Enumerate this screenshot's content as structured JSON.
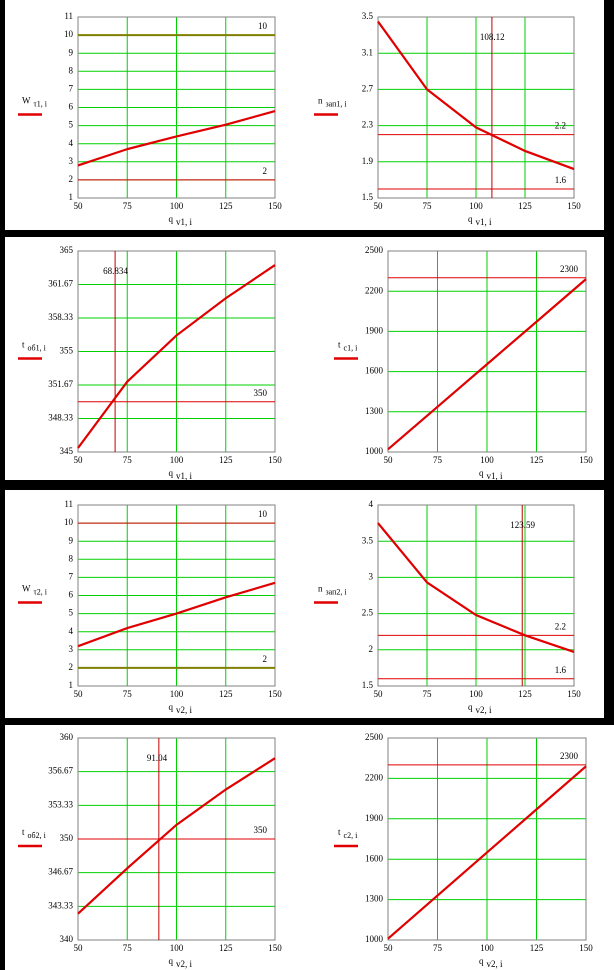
{
  "chart_data": [
    {
      "type": "line",
      "xlabel": {
        "text": "q",
        "sub": "v1, i"
      },
      "ylabel": {
        "text": "W",
        "sub": "τ1, i"
      },
      "x": [
        50,
        75,
        100,
        125,
        150
      ],
      "xlim": [
        50,
        150
      ],
      "xticks": [
        50,
        75,
        100,
        125,
        150
      ],
      "ylim": [
        1,
        11
      ],
      "yticks": [
        1,
        2,
        3,
        4,
        5,
        6,
        7,
        8,
        9,
        10,
        11
      ],
      "grid": true,
      "series": [
        {
          "color": "#e00000",
          "values": [
            2.8,
            3.7,
            4.4,
            5.05,
            5.8
          ]
        }
      ],
      "hlines": [
        {
          "value": 10,
          "color": "#808000"
        },
        {
          "value": 2,
          "color": "#e00000"
        }
      ],
      "vlines": []
    },
    {
      "type": "line",
      "xlabel": {
        "text": "q",
        "sub": "v1, i"
      },
      "ylabel": {
        "text": "n",
        "sub": "зап1, i"
      },
      "x": [
        50,
        75,
        100,
        125,
        150
      ],
      "xlim": [
        50,
        150
      ],
      "xticks": [
        50,
        75,
        100,
        125,
        150
      ],
      "ylim": [
        1.5,
        3.5
      ],
      "yticks": [
        1.5,
        1.9,
        2.3,
        2.7,
        3.1,
        3.5
      ],
      "grid": true,
      "series": [
        {
          "color": "#e00000",
          "values": [
            3.45,
            2.7,
            2.28,
            2.02,
            1.82
          ]
        }
      ],
      "hlines": [
        {
          "value": 2.2,
          "color": "#e00000"
        },
        {
          "value": 1.6,
          "color": "#e00000"
        }
      ],
      "vlines": [
        {
          "value": 108.12,
          "color": "#c00000"
        }
      ]
    },
    {
      "type": "line",
      "xlabel": {
        "text": "q",
        "sub": "v1, i"
      },
      "ylabel": {
        "text": "t",
        "sub": "об1, i"
      },
      "x": [
        50,
        75,
        100,
        125,
        150
      ],
      "xlim": [
        50,
        150
      ],
      "xticks": [
        50,
        75,
        100,
        125,
        150
      ],
      "ylim": [
        345,
        365
      ],
      "yticks": [
        345,
        348.33,
        351.67,
        355,
        358.33,
        361.67,
        365
      ],
      "grid": true,
      "series": [
        {
          "color": "#e00000",
          "values": [
            345.4,
            352,
            356.6,
            360.3,
            363.6
          ]
        }
      ],
      "hlines": [
        {
          "value": 350,
          "color": "#e00000"
        }
      ],
      "vlines": [
        {
          "value": 68.834,
          "color": "#c00000"
        }
      ]
    },
    {
      "type": "line",
      "xlabel": {
        "text": "q",
        "sub": "v1, i"
      },
      "ylabel": {
        "text": "t",
        "sub": "c1, i"
      },
      "x": [
        50,
        75,
        100,
        125,
        150
      ],
      "xlim": [
        50,
        150
      ],
      "xticks": [
        50,
        75,
        100,
        125,
        150
      ],
      "ylim": [
        1000,
        2500
      ],
      "yticks": [
        1000,
        1300,
        1600,
        1900,
        2200,
        2500
      ],
      "grid": true,
      "series": [
        {
          "color": "#e00000",
          "values": [
            1020,
            1337,
            1655,
            1972,
            2290
          ]
        }
      ],
      "hlines": [
        {
          "value": 2300,
          "color": "#e00000"
        }
      ],
      "vlines": []
    },
    {
      "type": "line",
      "xlabel": {
        "text": "q",
        "sub": "v2, i"
      },
      "ylabel": {
        "text": "W",
        "sub": "τ2, i"
      },
      "x": [
        50,
        75,
        100,
        125,
        150
      ],
      "xlim": [
        50,
        150
      ],
      "xticks": [
        50,
        75,
        100,
        125,
        150
      ],
      "ylim": [
        1,
        11
      ],
      "yticks": [
        1,
        2,
        3,
        4,
        5,
        6,
        7,
        8,
        9,
        10,
        11
      ],
      "grid": true,
      "series": [
        {
          "color": "#e00000",
          "values": [
            3.2,
            4.2,
            5.0,
            5.9,
            6.7
          ]
        }
      ],
      "hlines": [
        {
          "value": 10,
          "color": "#e00000"
        },
        {
          "value": 2,
          "color": "#808000"
        }
      ],
      "vlines": []
    },
    {
      "type": "line",
      "xlabel": {
        "text": "q",
        "sub": "v2, i"
      },
      "ylabel": {
        "text": "n",
        "sub": "зап2, i"
      },
      "x": [
        50,
        75,
        100,
        125,
        150
      ],
      "xlim": [
        50,
        150
      ],
      "xticks": [
        50,
        75,
        100,
        125,
        150
      ],
      "ylim": [
        1.5,
        4
      ],
      "yticks": [
        1.5,
        2,
        2.5,
        3,
        3.5,
        4
      ],
      "grid": true,
      "series": [
        {
          "color": "#e00000",
          "values": [
            3.75,
            2.93,
            2.48,
            2.2,
            1.97
          ]
        }
      ],
      "hlines": [
        {
          "value": 2.2,
          "color": "#e00000"
        },
        {
          "value": 1.6,
          "color": "#e00000"
        }
      ],
      "vlines": [
        {
          "value": 123.59,
          "color": "#c00000"
        }
      ]
    },
    {
      "type": "line",
      "xlabel": {
        "text": "q",
        "sub": "v2, i"
      },
      "ylabel": {
        "text": "t",
        "sub": "об2, i"
      },
      "x": [
        50,
        75,
        100,
        125,
        150
      ],
      "xlim": [
        50,
        150
      ],
      "xticks": [
        50,
        75,
        100,
        125,
        150
      ],
      "ylim": [
        340,
        360
      ],
      "yticks": [
        340,
        343.33,
        346.67,
        350,
        353.33,
        356.67,
        360
      ],
      "grid": true,
      "series": [
        {
          "color": "#e00000",
          "values": [
            342.6,
            347.1,
            351.4,
            354.9,
            358.0
          ]
        }
      ],
      "hlines": [
        {
          "value": 350,
          "color": "#e00000"
        }
      ],
      "vlines": [
        {
          "value": 91.04,
          "color": "#c00000"
        }
      ]
    },
    {
      "type": "line",
      "xlabel": {
        "text": "q",
        "sub": "v2, i"
      },
      "ylabel": {
        "text": "t",
        "sub": "c2, i"
      },
      "x": [
        50,
        75,
        100,
        125,
        150
      ],
      "xlim": [
        50,
        150
      ],
      "xticks": [
        50,
        75,
        100,
        125,
        150
      ],
      "ylim": [
        1000,
        2500
      ],
      "yticks": [
        1000,
        1300,
        1600,
        1900,
        2200,
        2500
      ],
      "grid": true,
      "series": [
        {
          "color": "#e00000",
          "values": [
            1010,
            1330,
            1650,
            1970,
            2290
          ]
        }
      ],
      "hlines": [
        {
          "value": 2300,
          "color": "#e00000"
        }
      ],
      "vlines": []
    }
  ]
}
